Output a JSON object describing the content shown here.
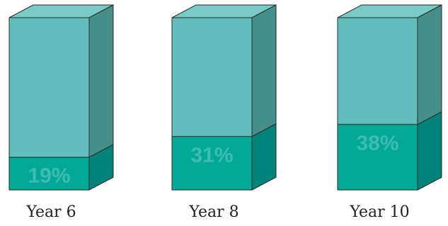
{
  "chart_data": {
    "type": "bar",
    "subtype": "stacked-3d-column",
    "categories": [
      "Year 6",
      "Year 8",
      "Year 10"
    ],
    "values": [
      19,
      31,
      38
    ],
    "unit": "%",
    "value_labels": [
      "19%",
      "31%",
      "38%"
    ],
    "ylim": [
      0,
      100
    ],
    "legend": "none",
    "grid": false,
    "colors": {
      "highlight_front": "#00a898",
      "highlight_side": "#00847a",
      "highlight_top": "#009f92",
      "remainder_front": "#62bebc",
      "remainder_side": "#468e8a",
      "remainder_top": "#78cbc7",
      "label": "#3fbcb0",
      "outline": "#2a2a2a"
    }
  }
}
